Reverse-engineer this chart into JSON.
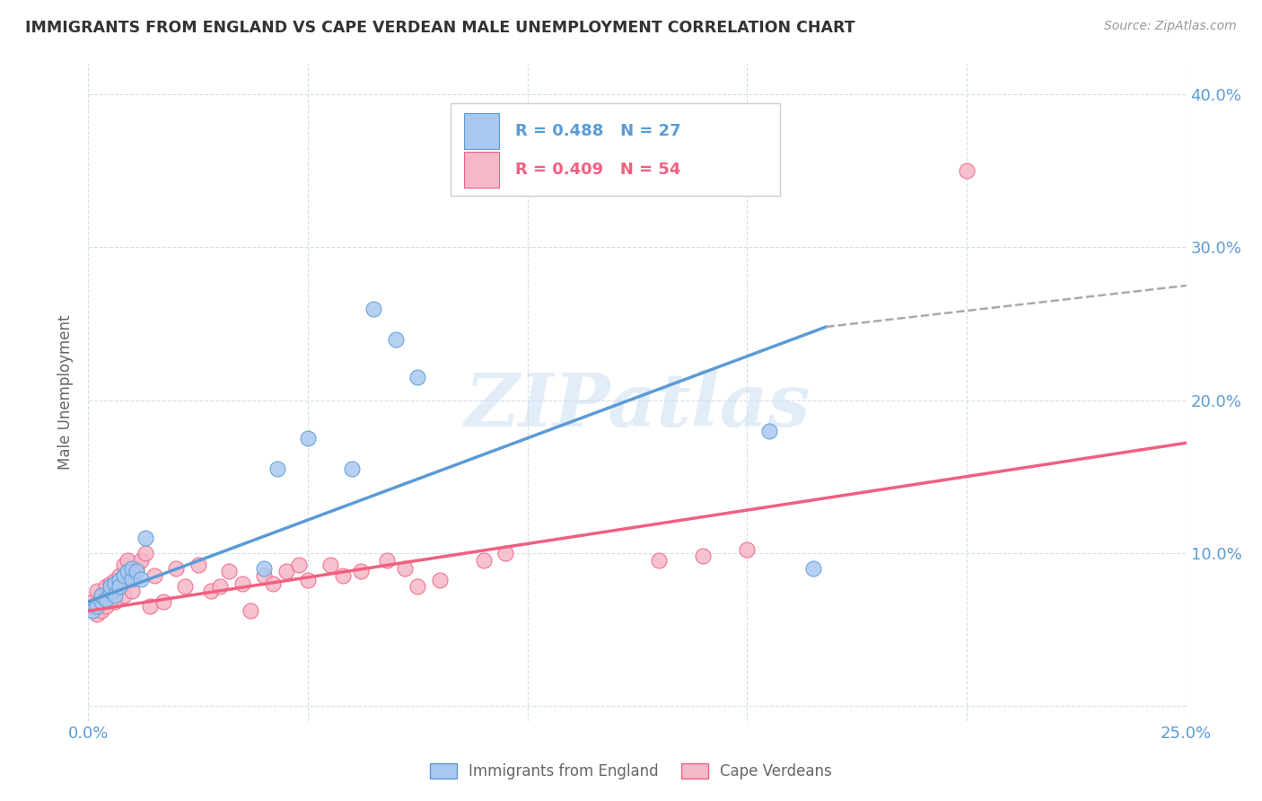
{
  "title": "IMMIGRANTS FROM ENGLAND VS CAPE VERDEAN MALE UNEMPLOYMENT CORRELATION CHART",
  "source": "Source: ZipAtlas.com",
  "ylabel": "Male Unemployment",
  "xlim": [
    0.0,
    0.25
  ],
  "ylim": [
    -0.01,
    0.42
  ],
  "color_england": "#a8c8f0",
  "color_capeverde": "#f5b8c8",
  "color_england_line": "#5b9bd5",
  "color_capeverde_line": "#f06080",
  "color_dashed": "#aaaaaa",
  "watermark": "ZIPatlas",
  "england_x": [
    0.001,
    0.002,
    0.003,
    0.003,
    0.004,
    0.005,
    0.005,
    0.006,
    0.006,
    0.007,
    0.007,
    0.008,
    0.009,
    0.01,
    0.01,
    0.011,
    0.012,
    0.013,
    0.04,
    0.043,
    0.05,
    0.06,
    0.065,
    0.07,
    0.075,
    0.155,
    0.165
  ],
  "england_y": [
    0.062,
    0.065,
    0.068,
    0.072,
    0.07,
    0.075,
    0.078,
    0.08,
    0.072,
    0.082,
    0.078,
    0.085,
    0.088,
    0.083,
    0.09,
    0.088,
    0.083,
    0.11,
    0.09,
    0.155,
    0.175,
    0.155,
    0.26,
    0.24,
    0.215,
    0.18,
    0.09
  ],
  "capeverde_x": [
    0.001,
    0.001,
    0.002,
    0.002,
    0.003,
    0.003,
    0.003,
    0.004,
    0.004,
    0.005,
    0.005,
    0.005,
    0.006,
    0.006,
    0.007,
    0.007,
    0.008,
    0.008,
    0.008,
    0.009,
    0.01,
    0.01,
    0.011,
    0.012,
    0.013,
    0.014,
    0.015,
    0.017,
    0.02,
    0.022,
    0.025,
    0.028,
    0.03,
    0.032,
    0.035,
    0.037,
    0.04,
    0.042,
    0.045,
    0.048,
    0.05,
    0.055,
    0.058,
    0.062,
    0.068,
    0.072,
    0.075,
    0.08,
    0.09,
    0.095,
    0.13,
    0.14,
    0.15,
    0.2
  ],
  "capeverde_y": [
    0.065,
    0.068,
    0.06,
    0.075,
    0.062,
    0.068,
    0.072,
    0.065,
    0.078,
    0.07,
    0.075,
    0.08,
    0.082,
    0.068,
    0.085,
    0.078,
    0.072,
    0.08,
    0.092,
    0.095,
    0.075,
    0.085,
    0.09,
    0.095,
    0.1,
    0.065,
    0.085,
    0.068,
    0.09,
    0.078,
    0.092,
    0.075,
    0.078,
    0.088,
    0.08,
    0.062,
    0.085,
    0.08,
    0.088,
    0.092,
    0.082,
    0.092,
    0.085,
    0.088,
    0.095,
    0.09,
    0.078,
    0.082,
    0.095,
    0.1,
    0.095,
    0.098,
    0.102,
    0.35
  ],
  "blue_line_x": [
    0.0,
    0.168
  ],
  "blue_line_y": [
    0.068,
    0.248
  ],
  "dashed_line_x": [
    0.168,
    0.25
  ],
  "dashed_line_y": [
    0.248,
    0.275
  ],
  "pink_line_x": [
    0.0,
    0.25
  ],
  "pink_line_y": [
    0.062,
    0.172
  ]
}
